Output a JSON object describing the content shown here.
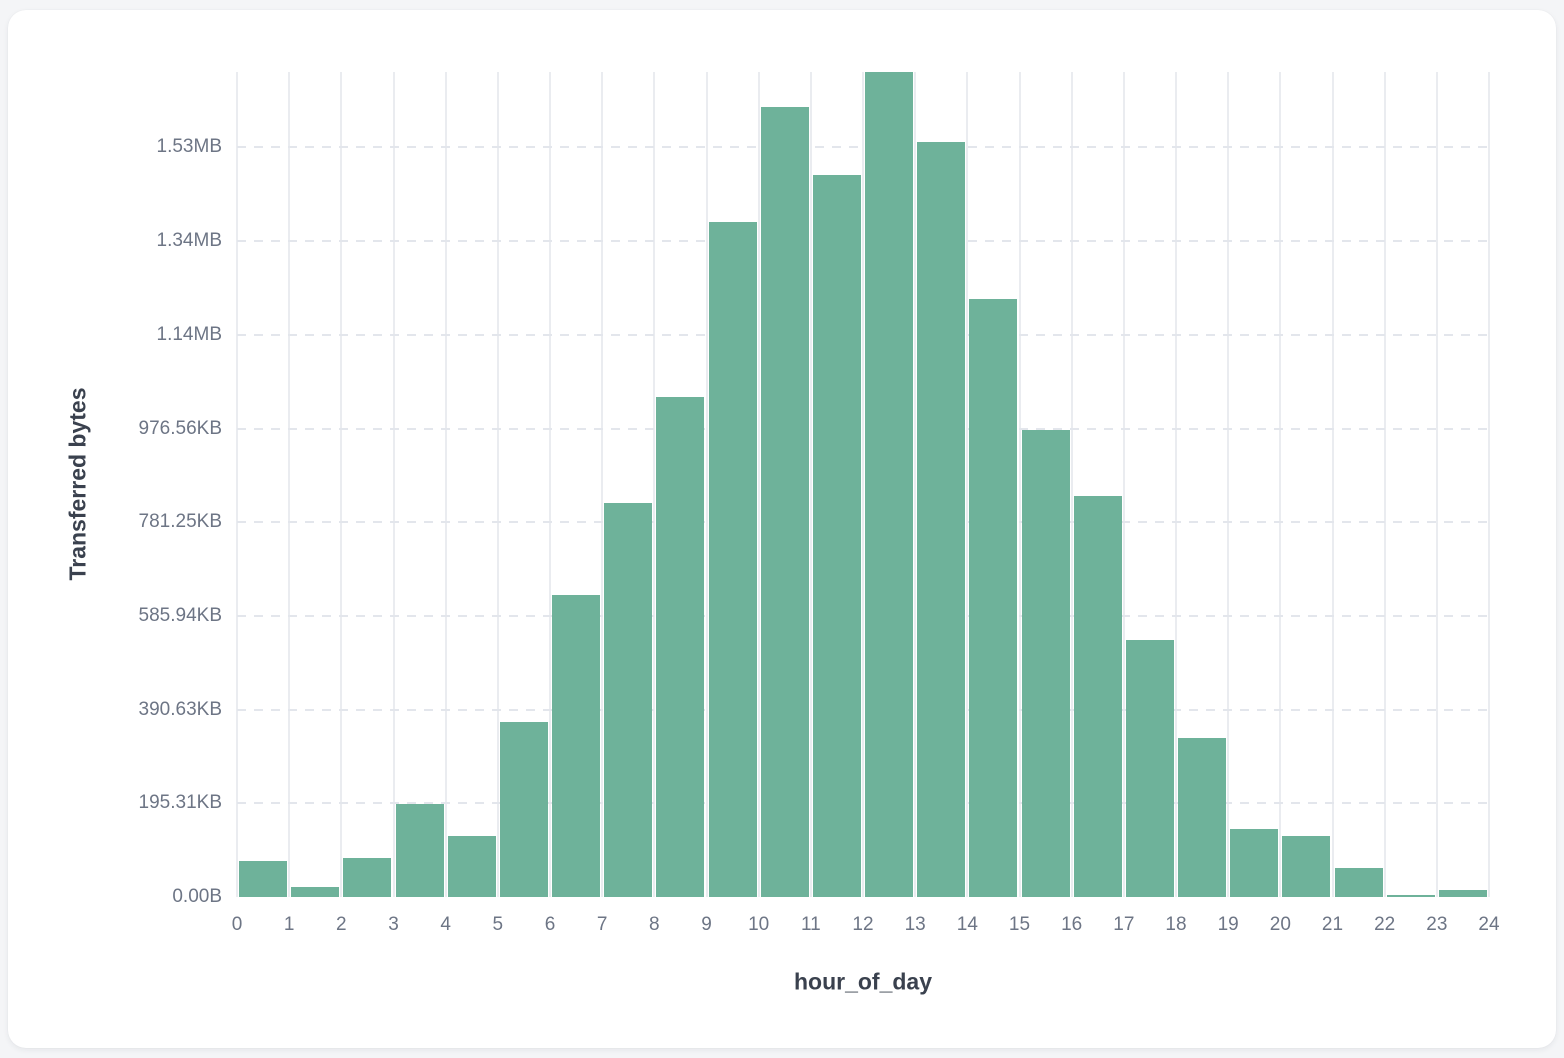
{
  "chart_data": {
    "type": "bar",
    "subtype": "histogram",
    "title": "",
    "xlabel": "hour_of_day",
    "ylabel": "Transferred bytes",
    "categories": [
      0,
      1,
      2,
      3,
      4,
      5,
      6,
      7,
      8,
      9,
      10,
      11,
      12,
      13,
      14,
      15,
      16,
      17,
      18,
      19,
      20,
      21,
      22,
      23
    ],
    "values": [
      77000,
      21000,
      84000,
      199000,
      131000,
      373000,
      645000,
      840000,
      1068000,
      1441000,
      1687000,
      1542000,
      1761000,
      1612000,
      1277000,
      997000,
      857000,
      549000,
      339000,
      146000,
      131000,
      62000,
      5000,
      16000
    ],
    "values_unit": "bytes",
    "x_tick_labels": [
      "0",
      "1",
      "2",
      "3",
      "4",
      "5",
      "6",
      "7",
      "8",
      "9",
      "10",
      "11",
      "12",
      "13",
      "14",
      "15",
      "16",
      "17",
      "18",
      "19",
      "20",
      "21",
      "22",
      "23",
      "24"
    ],
    "y_tick_labels": [
      "0.00B",
      "195.31KB",
      "390.63KB",
      "585.94KB",
      "781.25KB",
      "976.56KB",
      "1.14MB",
      "1.34MB",
      "1.53MB"
    ],
    "y_tick_values": [
      0,
      200000,
      400000,
      600000,
      800000,
      1000000,
      1200000,
      1400000,
      1600000
    ],
    "xlim": [
      0,
      24
    ],
    "ylim": [
      0,
      1761000
    ],
    "grid": "on",
    "legend": "none"
  },
  "colors": {
    "page_background": "#f4f5f7",
    "card_background": "#ffffff",
    "bar_fill": "#6eb29a",
    "vertical_gridline": "#eaecf0",
    "horizontal_gridline": "#e3e6ec",
    "tick_label_text": "#6d7585",
    "axis_title_text": "#3a414e"
  }
}
